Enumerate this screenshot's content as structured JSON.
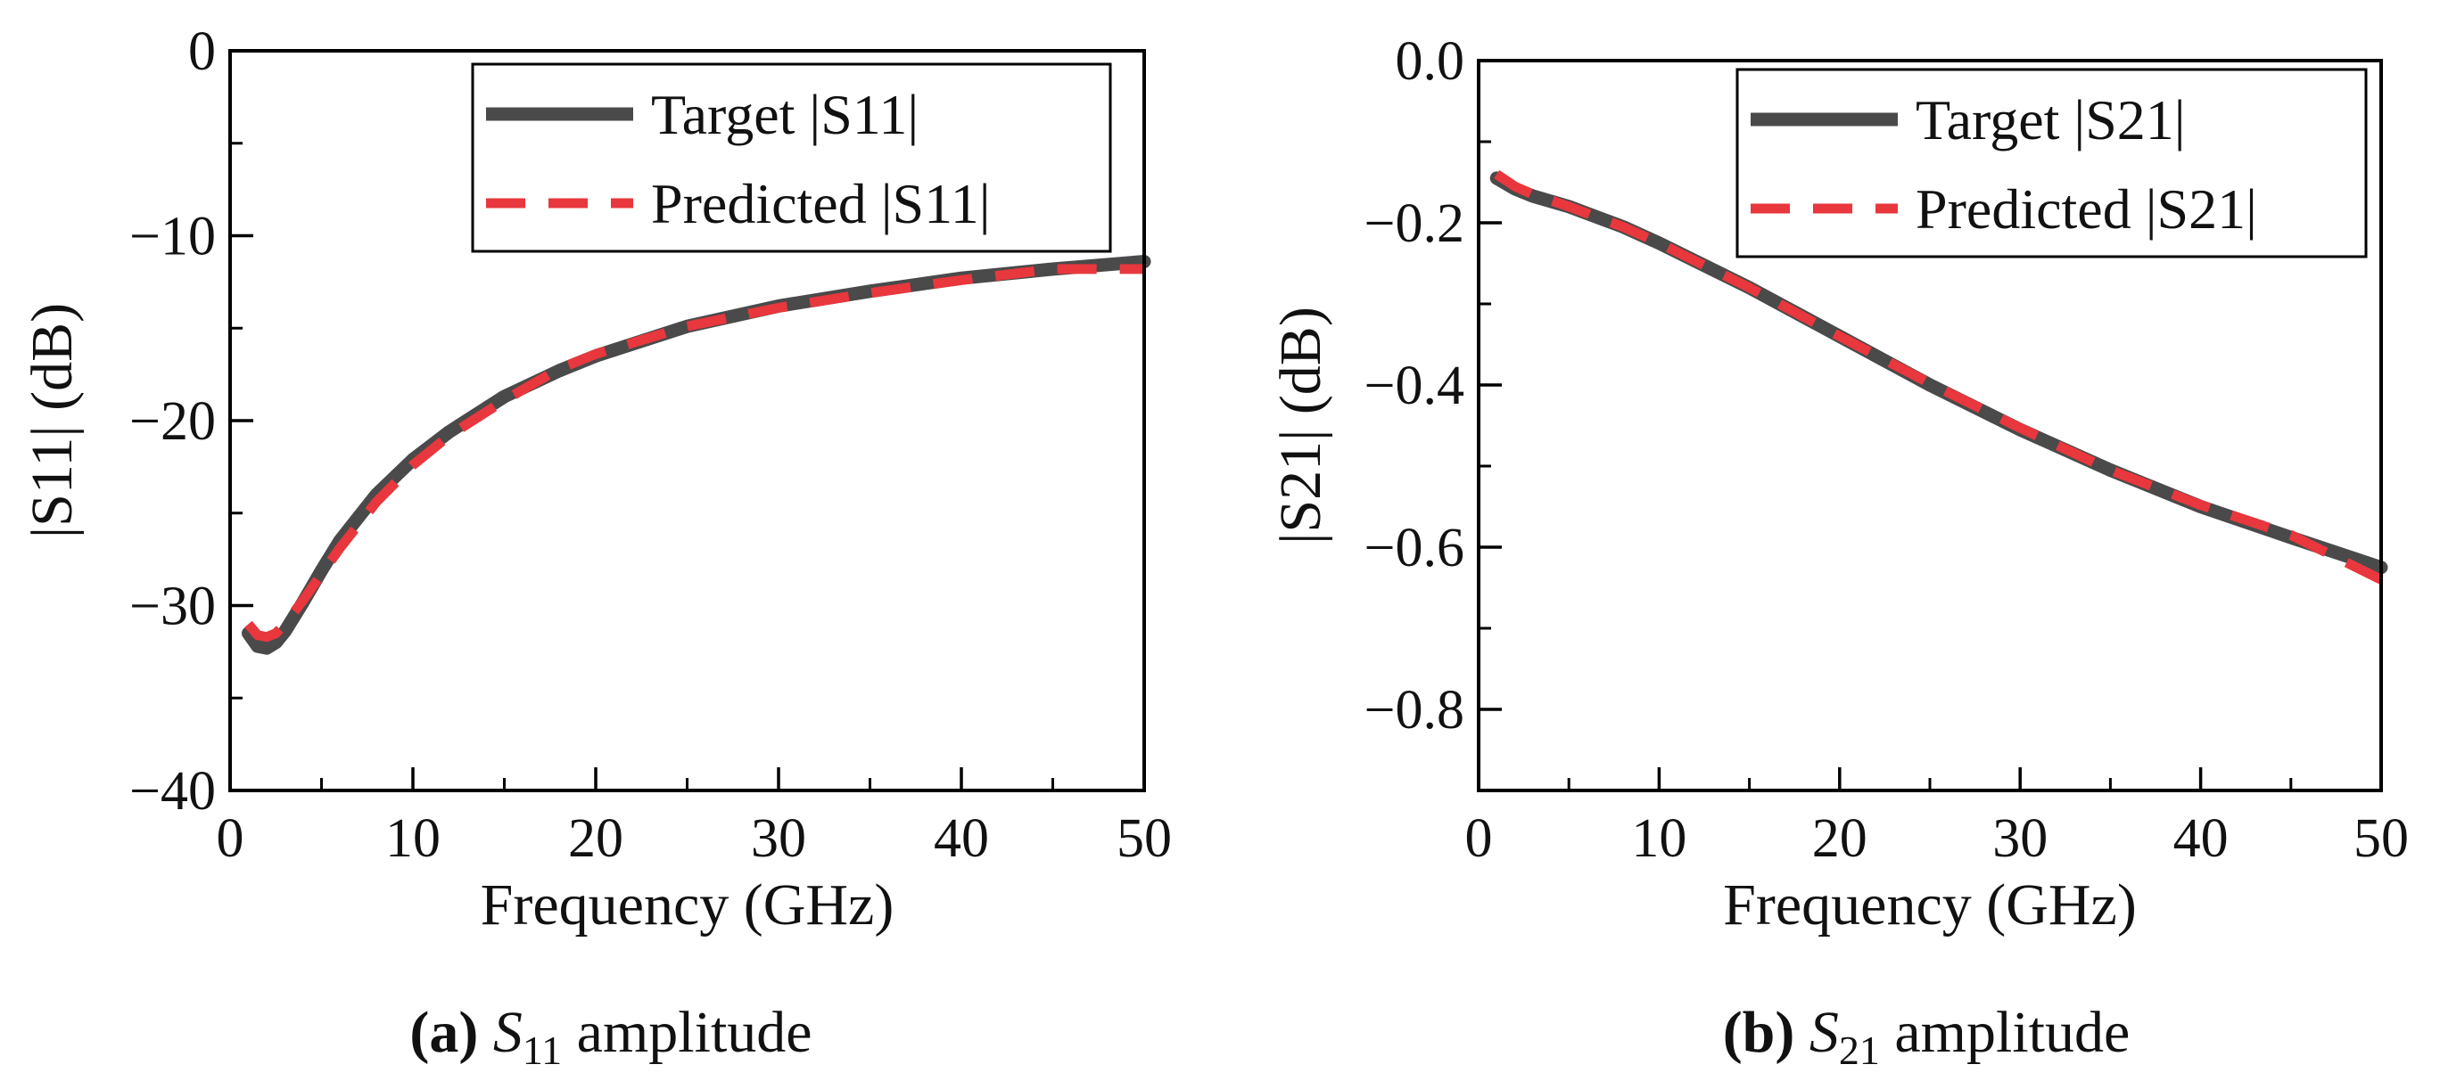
{
  "chart_data": [
    {
      "type": "line",
      "xlabel": "Frequency (GHz)",
      "ylabel": "|S11| (dB)",
      "xlim": [
        0,
        50
      ],
      "ylim": [
        -40,
        0
      ],
      "xticks": [
        0,
        10,
        20,
        30,
        40,
        50
      ],
      "yticks": [
        0,
        -10,
        -20,
        -30,
        -40
      ],
      "ytick_labels": [
        "0",
        "−10",
        "−20",
        "−30",
        "−40"
      ],
      "minor_step_x": 5,
      "minor_step_y": 5,
      "legend_position": "top-right",
      "series": [
        {
          "name": "Target |S11|",
          "style": "solid",
          "color": "#4a4a4a",
          "x": [
            1,
            1.5,
            2,
            2.5,
            3,
            4,
            5,
            6,
            8,
            10,
            12,
            15,
            18,
            20,
            25,
            30,
            35,
            40,
            45,
            50
          ],
          "y": [
            -31.5,
            -32.2,
            -32.3,
            -32,
            -31.4,
            -29.8,
            -28.1,
            -26.5,
            -24,
            -22.1,
            -20.6,
            -18.7,
            -17.3,
            -16.5,
            -14.9,
            -13.8,
            -13,
            -12.3,
            -11.8,
            -11.4
          ]
        },
        {
          "name": "Predicted |S11|",
          "style": "dashed",
          "color": "#e8373d",
          "x": [
            1,
            1.5,
            2,
            2.5,
            3,
            4,
            5,
            6,
            8,
            10,
            12,
            15,
            18,
            20,
            25,
            30,
            35,
            40,
            45,
            50
          ],
          "y": [
            -31,
            -31.6,
            -31.7,
            -31.5,
            -31,
            -29.7,
            -28.3,
            -26.9,
            -24.4,
            -22.4,
            -20.8,
            -18.9,
            -17.2,
            -16.4,
            -14.9,
            -13.9,
            -13.1,
            -12.4,
            -11.8,
            -11.8
          ]
        }
      ]
    },
    {
      "type": "line",
      "xlabel": "Frequency (GHz)",
      "ylabel": "|S21| (dB)",
      "xlim": [
        0,
        50
      ],
      "ylim": [
        -0.9,
        0
      ],
      "xticks": [
        0,
        10,
        20,
        30,
        40,
        50
      ],
      "yticks": [
        0,
        -0.2,
        -0.4,
        -0.6,
        -0.8
      ],
      "ytick_labels": [
        "0.0",
        "−0.2",
        "−0.4",
        "−0.6",
        "−0.8"
      ],
      "minor_step_x": 5,
      "minor_step_y": 0.1,
      "legend_position": "top-right",
      "series": [
        {
          "name": "Target |S21|",
          "style": "solid",
          "color": "#4a4a4a",
          "x": [
            1,
            2,
            3,
            5,
            8,
            10,
            15,
            20,
            25,
            30,
            35,
            40,
            45,
            50
          ],
          "y": [
            -0.145,
            -0.158,
            -0.167,
            -0.18,
            -0.205,
            -0.225,
            -0.28,
            -0.34,
            -0.4,
            -0.455,
            -0.505,
            -0.55,
            -0.588,
            -0.625
          ]
        },
        {
          "name": "Predicted |S21|",
          "style": "dashed",
          "color": "#e8373d",
          "x": [
            1,
            2,
            3,
            5,
            8,
            10,
            15,
            20,
            25,
            30,
            35,
            40,
            45,
            50
          ],
          "y": [
            -0.14,
            -0.155,
            -0.165,
            -0.18,
            -0.205,
            -0.225,
            -0.28,
            -0.34,
            -0.398,
            -0.453,
            -0.505,
            -0.548,
            -0.585,
            -0.64
          ]
        }
      ]
    }
  ],
  "captions": [
    {
      "letter": "(a)",
      "symbol": "S",
      "subscript": "11",
      "text": "amplitude"
    },
    {
      "letter": "(b)",
      "symbol": "S",
      "subscript": "21",
      "text": "amplitude"
    }
  ]
}
